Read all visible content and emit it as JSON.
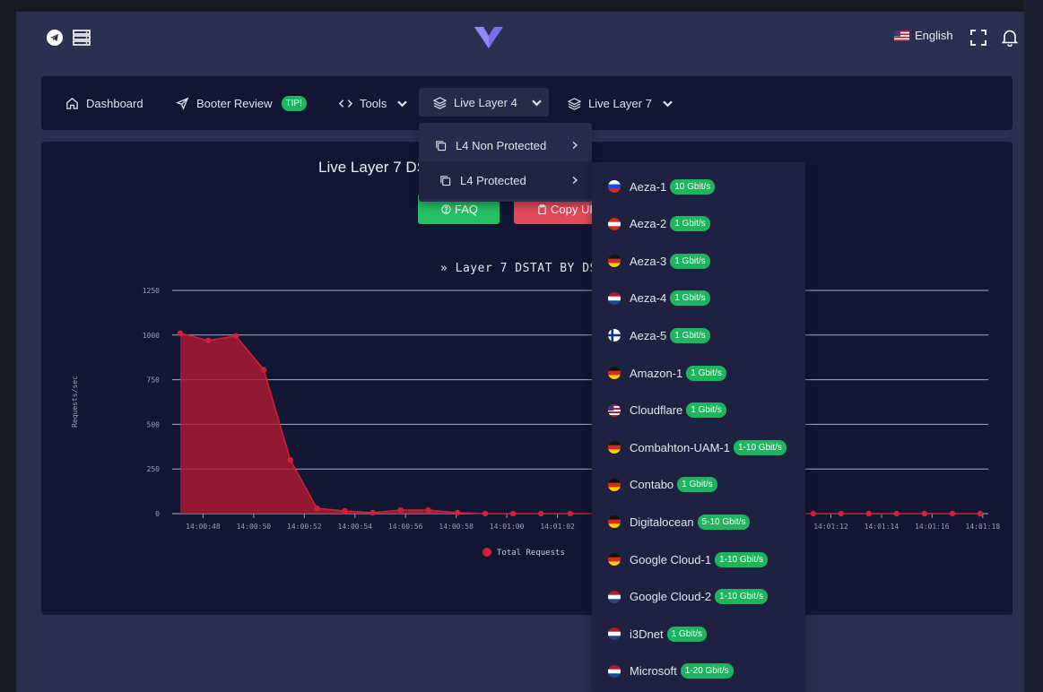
{
  "topbar": {
    "language": "English",
    "icons": [
      "telegram-icon",
      "servers-icon",
      "logo",
      "fullscreen-icon",
      "bell-icon"
    ]
  },
  "nav": {
    "dashboard": "Dashboard",
    "booter_review": "Booter Review",
    "tip_badge": "TIP!",
    "tools": "Tools",
    "live_layer4": "Live Layer 4",
    "live_layer7": "Live Layer 7"
  },
  "card": {
    "title": "Live Layer 7 DS",
    "faq_button": "FAQ",
    "copy_button": "Copy UR"
  },
  "l4_menu": {
    "non_protected": "L4 Non Protected",
    "protected": "L4 Protected"
  },
  "servers": [
    {
      "name": "Aeza-1",
      "speed": "10 Gbit/s",
      "flag": "ru"
    },
    {
      "name": "Aeza-2",
      "speed": "1 Gbit/s",
      "flag": "at"
    },
    {
      "name": "Aeza-3",
      "speed": "1 Gbit/s",
      "flag": "de"
    },
    {
      "name": "Aeza-4",
      "speed": "1 Gbit/s",
      "flag": "nl"
    },
    {
      "name": "Aeza-5",
      "speed": "1 Gbit/s",
      "flag": "fi"
    },
    {
      "name": "Amazon-1",
      "speed": "1 Gbit/s",
      "flag": "de"
    },
    {
      "name": "Cloudflare",
      "speed": "1 Gbit/s",
      "flag": "us"
    },
    {
      "name": "Combahton-UAM-1",
      "speed": "1-10 Gbit/s",
      "flag": "de"
    },
    {
      "name": "Contabo",
      "speed": "1 Gbit/s",
      "flag": "de"
    },
    {
      "name": "Digitalocean",
      "speed": "5-10 Gbit/s",
      "flag": "de"
    },
    {
      "name": "Google Cloud-1",
      "speed": "1-10 Gbit/s",
      "flag": "de"
    },
    {
      "name": "Google Cloud-2",
      "speed": "1-10 Gbit/s",
      "flag": "nl"
    },
    {
      "name": "i3Dnet",
      "speed": "1 Gbit/s",
      "flag": "nl"
    },
    {
      "name": "Microsoft",
      "speed": "1-20 Gbit/s",
      "flag": "nl"
    }
  ],
  "colors": {
    "accent_green": "#1fb45e",
    "danger_red": "#e24a5c",
    "chart_red": "#b31a2e",
    "panel": "#111633"
  },
  "chart_data": {
    "type": "area",
    "title": "» Layer 7 DSTAT BY DSTAT.C",
    "ylabel": "Requests/sec",
    "xlabel": "",
    "ylim": [
      0,
      1250
    ],
    "yticks": [
      0,
      250,
      500,
      750,
      1000,
      1250
    ],
    "x_tick_labels": [
      "14:00:48",
      "14:00:50",
      "14:00:52",
      "14:00:54",
      "14:00:56",
      "14:00:58",
      "14:01:00",
      "14:01:02",
      "14:01:12",
      "14:01:14",
      "14:01:16",
      "14:01:18"
    ],
    "grid": true,
    "legend": "bottom",
    "series": [
      {
        "name": "Total Requests",
        "color": "#b31a2e",
        "points": [
          {
            "x": 0.0,
            "y": 1010
          },
          {
            "x": 1.1,
            "y": 970
          },
          {
            "x": 2.2,
            "y": 995
          },
          {
            "x": 3.3,
            "y": 805
          },
          {
            "x": 4.35,
            "y": 300
          },
          {
            "x": 5.4,
            "y": 30
          },
          {
            "x": 6.5,
            "y": 15
          },
          {
            "x": 7.6,
            "y": 5
          },
          {
            "x": 8.7,
            "y": 20
          },
          {
            "x": 9.8,
            "y": 20
          },
          {
            "x": 10.95,
            "y": 5
          },
          {
            "x": 12.05,
            "y": 0
          },
          {
            "x": 13.15,
            "y": 0
          },
          {
            "x": 14.25,
            "y": 0
          },
          {
            "x": 15.4,
            "y": 0
          },
          {
            "x": 25.0,
            "y": 0
          },
          {
            "x": 26.1,
            "y": 0
          },
          {
            "x": 27.2,
            "y": 0
          },
          {
            "x": 28.3,
            "y": 0
          },
          {
            "x": 29.4,
            "y": 0
          },
          {
            "x": 30.5,
            "y": 0
          },
          {
            "x": 31.6,
            "y": 0
          }
        ]
      }
    ]
  }
}
